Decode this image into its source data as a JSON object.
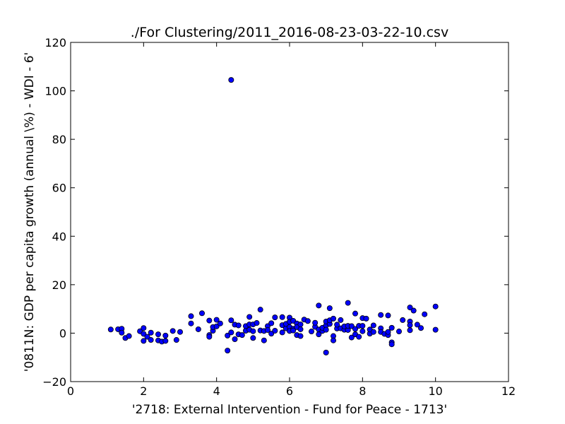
{
  "chart_data": {
    "type": "scatter",
    "title": "./For Clustering/2011_2016-08-23-03-22-10.csv",
    "xlabel": "'2718: External Intervention - Fund for Peace - 1713'",
    "ylabel": "'0811N: GDP per capita growth  (annual \\%) - WDI - 6'",
    "xlim": [
      0,
      12
    ],
    "ylim": [
      -20,
      120
    ],
    "x_ticks": [
      "0",
      "2",
      "4",
      "6",
      "8",
      "10",
      "12"
    ],
    "y_ticks": [
      "−20",
      "0",
      "20",
      "40",
      "60",
      "80",
      "100",
      "120"
    ],
    "grid": false,
    "marker_color": "#0000ff",
    "series": [
      {
        "x": [
          1.1,
          1.3,
          1.4,
          1.4,
          1.5,
          1.6,
          1.9,
          2.0,
          2.0,
          2.0,
          2.1,
          2.2,
          2.2,
          2.4,
          2.4,
          2.5,
          2.6,
          2.6,
          2.8,
          2.9,
          3.0,
          3.3,
          3.3,
          3.5,
          3.6,
          3.8,
          3.8,
          3.8,
          3.9,
          3.9,
          4.0,
          4.0,
          4.1,
          4.3,
          4.3,
          4.4,
          4.4,
          4.4,
          4.5,
          4.5,
          4.6,
          4.6,
          4.7,
          4.8,
          4.8,
          4.9,
          4.9,
          4.9,
          5.0,
          5.0,
          5.0,
          5.1,
          5.2,
          5.2,
          5.3,
          5.3,
          5.4,
          5.4,
          5.5,
          5.5,
          5.6,
          5.6,
          5.8,
          5.8,
          5.8,
          5.9,
          5.9,
          6.0,
          6.0,
          6.0,
          6.0,
          6.1,
          6.1,
          6.1,
          6.2,
          6.2,
          6.2,
          6.3,
          6.3,
          6.3,
          6.4,
          6.5,
          6.6,
          6.7,
          6.7,
          6.8,
          6.8,
          6.8,
          6.9,
          6.9,
          7.0,
          7.0,
          7.0,
          7.0,
          7.1,
          7.1,
          7.1,
          7.2,
          7.2,
          7.2,
          7.3,
          7.3,
          7.4,
          7.4,
          7.5,
          7.5,
          7.6,
          7.6,
          7.6,
          7.7,
          7.7,
          7.8,
          7.8,
          7.8,
          7.9,
          7.9,
          8.0,
          8.0,
          8.0,
          8.1,
          8.2,
          8.2,
          8.3,
          8.3,
          8.5,
          8.5,
          8.5,
          8.6,
          8.7,
          8.7,
          8.7,
          8.8,
          8.8,
          8.8,
          9.0,
          9.1,
          9.3,
          9.3,
          9.3,
          9.3,
          9.4,
          9.5,
          9.6,
          9.7,
          10.0,
          10.0
        ],
        "y": [
          1.5,
          1.6,
          1.8,
          0.2,
          -2.0,
          -1.2,
          0.8,
          2.1,
          -0.3,
          -3.2,
          -1.5,
          0.2,
          -2.8,
          -3.0,
          -0.5,
          -3.5,
          -1.0,
          -3.2,
          0.9,
          -2.8,
          0.5,
          7.0,
          4.0,
          1.6,
          8.2,
          5.2,
          -0.8,
          -1.5,
          1.0,
          2.5,
          5.5,
          2.8,
          4.0,
          -7.2,
          -1.0,
          5.3,
          0.3,
          104.5,
          -2.5,
          3.5,
          -0.5,
          3.2,
          -0.8,
          2.9,
          1.0,
          3.6,
          6.7,
          1.4,
          0.8,
          -2.0,
          3.6,
          4.2,
          1.1,
          9.7,
          0.9,
          -3.0,
          2.9,
          1.3,
          -0.2,
          4.1,
          1.0,
          6.5,
          3.3,
          0.3,
          6.6,
          2.0,
          3.8,
          6.4,
          4.7,
          2.5,
          0.9,
          5.1,
          1.8,
          1.1,
          4.0,
          -0.8,
          2.5,
          3.6,
          1.6,
          -1.2,
          5.6,
          5.0,
          0.7,
          2.6,
          4.3,
          11.4,
          1.5,
          -0.5,
          0.9,
          2.2,
          -8.0,
          3.2,
          1.4,
          4.8,
          10.3,
          3.8,
          5.3,
          6.0,
          -1.2,
          -3.0,
          1.9,
          3.5,
          2.0,
          5.4,
          1.4,
          2.8,
          12.5,
          1.3,
          3.0,
          -1.8,
          2.9,
          8.1,
          1.7,
          -0.5,
          -1.5,
          3.0,
          6.2,
          3.0,
          0.8,
          6.0,
          -0.2,
          1.5,
          0.5,
          3.2,
          7.5,
          2.0,
          0.5,
          -0.3,
          7.3,
          -0.8,
          0.5,
          -3.8,
          -4.6,
          2.2,
          0.7,
          5.4,
          10.6,
          4.8,
          3.3,
          1.2,
          9.3,
          3.5,
          2.1,
          7.8,
          11.0,
          1.4
        ]
      }
    ]
  }
}
